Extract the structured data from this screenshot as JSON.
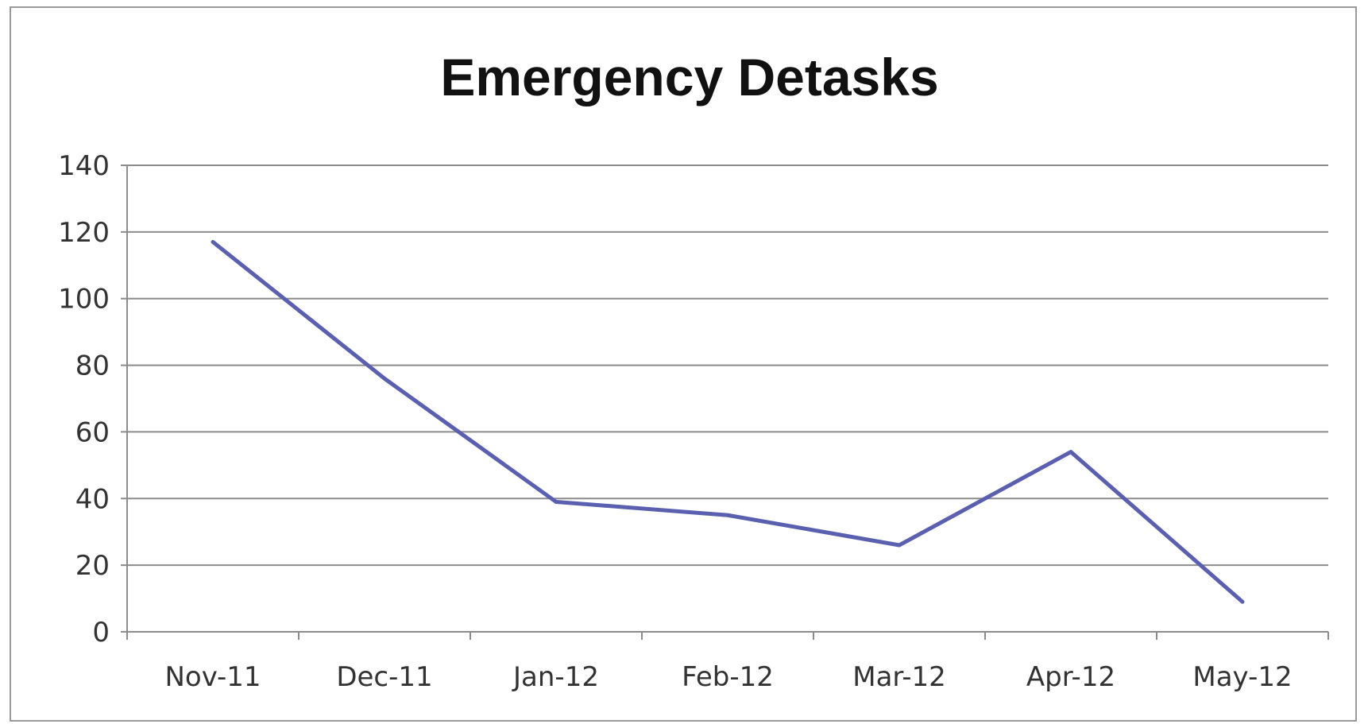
{
  "chart_data": {
    "type": "line",
    "title": "Emergency Detasks",
    "xlabel": "",
    "ylabel": "",
    "categories": [
      "Nov-11",
      "Dec-11",
      "Jan-12",
      "Feb-12",
      "Mar-12",
      "Apr-12",
      "May-12"
    ],
    "series": [
      {
        "values": [
          117,
          76,
          39,
          35,
          26,
          54,
          9
        ],
        "color": "#5a5fb0"
      }
    ],
    "ylim": [
      0,
      140
    ],
    "yticks": [
      "0",
      "20",
      "40",
      "60",
      "80",
      "100",
      "120",
      "140"
    ],
    "grid": true,
    "legend": "none"
  }
}
